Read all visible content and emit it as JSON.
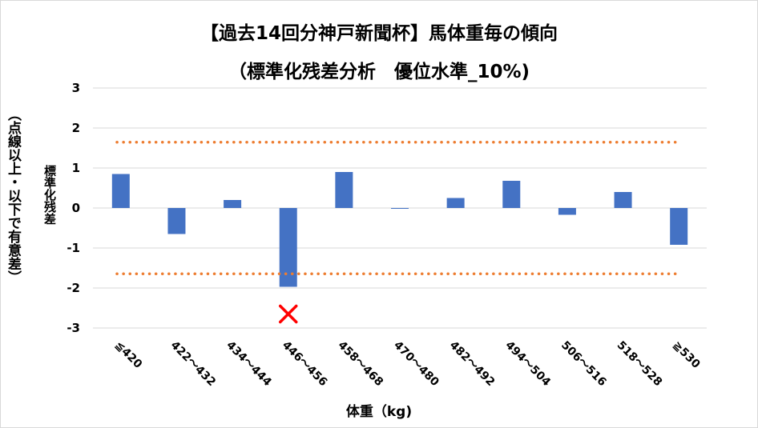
{
  "chart_data": {
    "type": "bar",
    "title": "【過去14回分神戸新聞杯】馬体重毎の傾向",
    "subtitle": "（標準化残差分析　優位水準_10%)",
    "xlabel": "体重（kg)",
    "ylabel": "標準化残差",
    "ylabel_outer": "（点線以上・以下で有意差）",
    "categories": [
      "≦420",
      "422～432",
      "434～444",
      "446～456",
      "458～468",
      "470～480",
      "482～492",
      "494～504",
      "506～516",
      "518～528",
      "≧530"
    ],
    "values": [
      0.85,
      -0.65,
      0.2,
      -1.97,
      0.9,
      -0.02,
      0.25,
      0.68,
      -0.17,
      0.4,
      -0.92
    ],
    "ylim": [
      -3,
      3
    ],
    "yticks": [
      "3",
      "2",
      "1",
      "0",
      "-1",
      "-2",
      "-3"
    ],
    "threshold_lines": [
      1.645,
      -1.645
    ],
    "marker": {
      "category": "446～456",
      "value": -2.65,
      "symbol": "×"
    },
    "grid": true,
    "colors": {
      "bar": "#4472c4",
      "threshold": "#ed7d31",
      "marker": "#ff0000",
      "grid": "#d9d9d9"
    }
  }
}
